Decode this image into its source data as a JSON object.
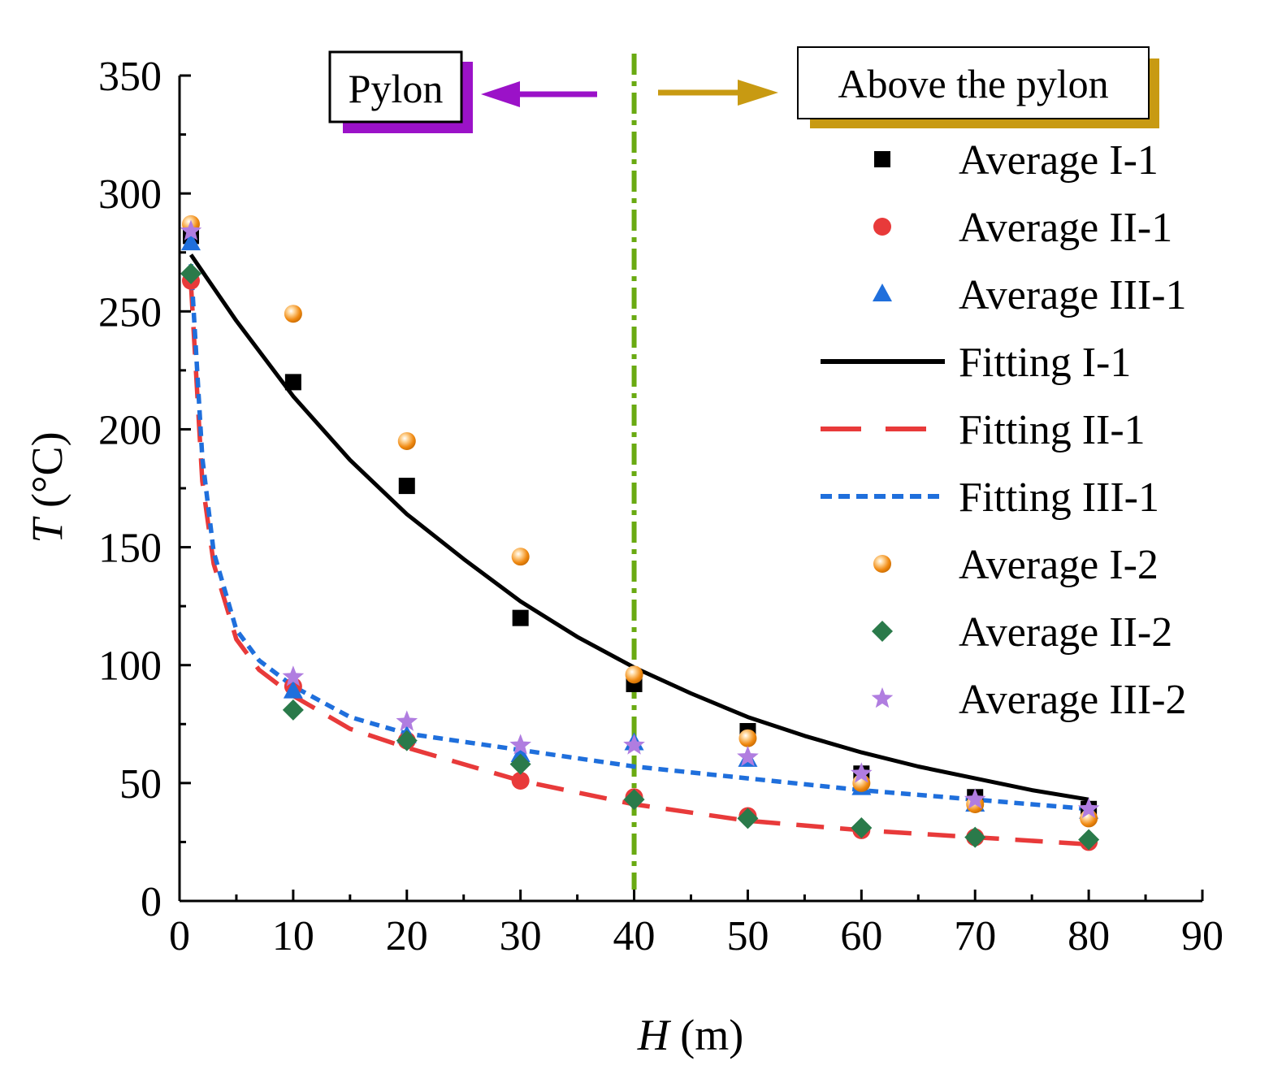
{
  "chart_data": {
    "type": "scatter",
    "xlabel_var": "H",
    "xlabel_unit": " (m)",
    "ylabel_var": "T",
    "ylabel_unit": " (°C)",
    "xlim": [
      0,
      90
    ],
    "ylim": [
      0,
      350
    ],
    "x_ticks": [
      0,
      10,
      20,
      30,
      40,
      50,
      60,
      70,
      80,
      90
    ],
    "y_ticks": [
      0,
      50,
      100,
      150,
      200,
      250,
      300,
      350
    ],
    "x_tick_labels": [
      "0",
      "10",
      "20",
      "30",
      "40",
      "50",
      "60",
      "70",
      "80",
      "90"
    ],
    "y_tick_labels": [
      "0",
      "50",
      "100",
      "150",
      "200",
      "250",
      "300",
      "350"
    ],
    "divider_x": 40,
    "divider_color": "#6aaa12",
    "annotations": {
      "left": {
        "text": "Pylon",
        "color": "#9b12c8"
      },
      "right": {
        "text": "Above the pylon",
        "color": "#c89a12"
      }
    },
    "series": [
      {
        "name": "Average I-1",
        "kind": "marker",
        "marker": "square",
        "color": "#000000",
        "x": [
          1,
          10,
          20,
          30,
          40,
          50,
          60,
          70,
          80
        ],
        "y": [
          282,
          220,
          176,
          120,
          92,
          72,
          54,
          44,
          39
        ]
      },
      {
        "name": "Average II-1",
        "kind": "marker",
        "marker": "circle",
        "color": "#e83a3a",
        "x": [
          1,
          10,
          20,
          30,
          40,
          50,
          60,
          70,
          80
        ],
        "y": [
          263,
          91,
          68,
          51,
          44,
          36,
          30,
          27,
          25
        ]
      },
      {
        "name": "Average III-1",
        "kind": "marker",
        "marker": "triangle",
        "color": "#1f6fdc",
        "x": [
          1,
          10,
          20,
          30,
          40,
          50,
          60,
          70,
          80
        ],
        "y": [
          279,
          89,
          70,
          62,
          67,
          60,
          48,
          41,
          38
        ]
      },
      {
        "name": "Fitting I-1",
        "kind": "line",
        "dash": "solid",
        "color": "#000000",
        "x": [
          1,
          5,
          10,
          15,
          20,
          25,
          30,
          35,
          40,
          45,
          50,
          55,
          60,
          65,
          70,
          75,
          80
        ],
        "y": [
          274,
          246,
          214,
          187,
          164,
          145,
          127,
          112,
          99,
          88,
          78,
          70,
          63,
          57,
          52,
          47,
          43
        ]
      },
      {
        "name": "Fitting II-1",
        "kind": "line",
        "dash": "dash",
        "color": "#e83a3a",
        "x": [
          1,
          2,
          3,
          5,
          7,
          10,
          15,
          20,
          30,
          40,
          50,
          60,
          70,
          80
        ],
        "y": [
          262,
          178,
          143,
          111,
          98,
          87,
          73,
          65,
          51,
          41,
          34,
          30,
          27,
          24
        ]
      },
      {
        "name": "Fitting III-1",
        "kind": "line",
        "dash": "dot",
        "color": "#1f6fdc",
        "x": [
          1,
          2,
          3,
          5,
          7,
          10,
          15,
          20,
          30,
          40,
          50,
          60,
          70,
          80
        ],
        "y": [
          270,
          188,
          148,
          115,
          102,
          91,
          78,
          71,
          64,
          57,
          52,
          47,
          43,
          39
        ]
      },
      {
        "name": "Average I-2",
        "kind": "marker",
        "marker": "ball",
        "color": "#f08a12",
        "x": [
          1,
          10,
          20,
          30,
          40,
          50,
          60,
          70,
          80
        ],
        "y": [
          287,
          249,
          195,
          146,
          96,
          69,
          50,
          41,
          35
        ]
      },
      {
        "name": "Average II-2",
        "kind": "marker",
        "marker": "diamond",
        "color": "#2a7a4a",
        "x": [
          1,
          10,
          20,
          30,
          40,
          50,
          60,
          70,
          80
        ],
        "y": [
          266,
          81,
          68,
          58,
          43,
          35,
          31,
          27,
          26
        ]
      },
      {
        "name": "Average III-2",
        "kind": "marker",
        "marker": "star",
        "color": "#b07de0",
        "x": [
          1,
          10,
          20,
          30,
          40,
          50,
          60,
          70,
          80
        ],
        "y": [
          284,
          95,
          76,
          66,
          66,
          61,
          54,
          43,
          39
        ]
      }
    ]
  }
}
